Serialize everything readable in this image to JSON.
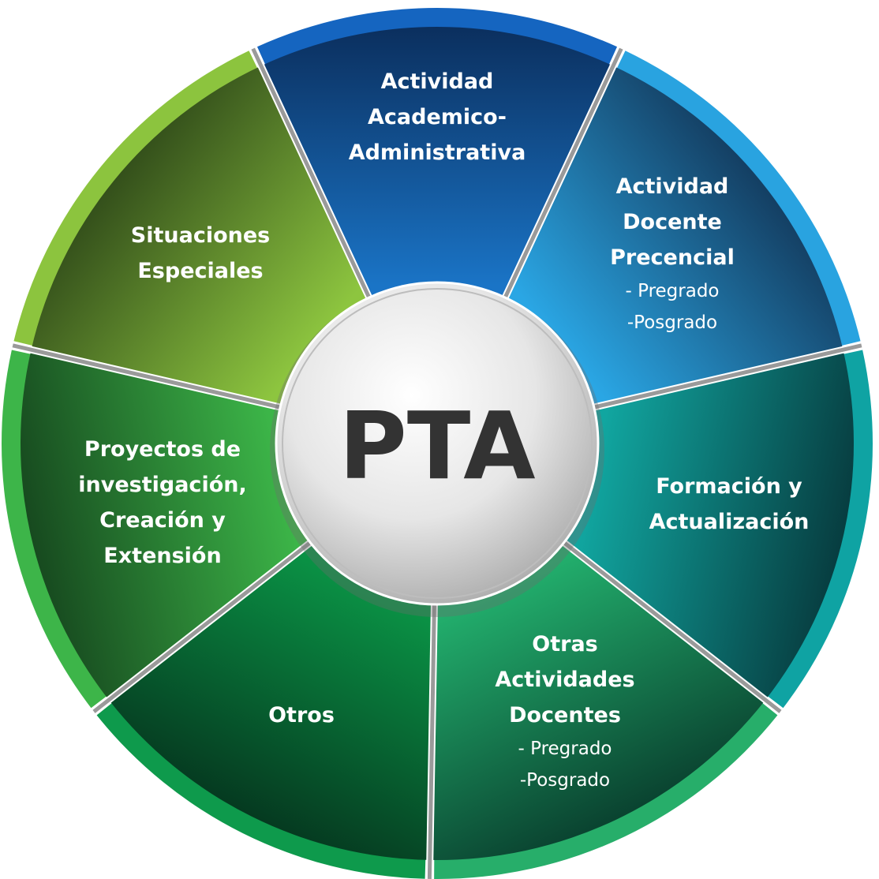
{
  "center": {
    "label": "PTA"
  },
  "segments": [
    {
      "id": "academico-administrativa",
      "title_lines": [
        "Actividad",
        "Academico-",
        "Administrativa"
      ],
      "sub_lines": [],
      "rim_color": "#1565c0",
      "fill_dark": "#0b2f5e",
      "fill_light": "#1a74c6"
    },
    {
      "id": "docente-presencial",
      "title_lines": [
        "Actividad",
        "Docente",
        "Precencial"
      ],
      "sub_lines": [
        "- Pregrado",
        "-Posgrado"
      ],
      "rim_color": "#29a3e0",
      "fill_dark": "#143f63",
      "fill_light": "#2aa6e4"
    },
    {
      "id": "formacion",
      "title_lines": [
        "Formación y",
        "Actualización"
      ],
      "sub_lines": [],
      "rim_color": "#0fa3a3",
      "fill_dark": "#073d40",
      "fill_light": "#11a6a0"
    },
    {
      "id": "otras-actividades",
      "title_lines": [
        "Otras",
        "Actividades",
        "Docentes"
      ],
      "sub_lines": [
        "- Pregrado",
        "-Posgrado"
      ],
      "rim_color": "#27ae6a",
      "fill_dark": "#0a4330",
      "fill_light": "#22ae6c"
    },
    {
      "id": "otros",
      "title_lines": [
        "Otros"
      ],
      "sub_lines": [],
      "rim_color": "#0e9a4c",
      "fill_dark": "#053a20",
      "fill_light": "#0a9245"
    },
    {
      "id": "proyectos",
      "title_lines": [
        "Proyectos de",
        "investigación,",
        "Creación y",
        "Extensión"
      ],
      "sub_lines": [],
      "rim_color": "#3db549",
      "fill_dark": "#174a1f",
      "fill_light": "#3cb548"
    },
    {
      "id": "situaciones",
      "title_lines": [
        "Situaciones",
        "Especiales"
      ],
      "sub_lines": [],
      "rim_color": "#8cc43e",
      "fill_dark": "#34501b",
      "fill_light": "#8dc53f"
    }
  ]
}
